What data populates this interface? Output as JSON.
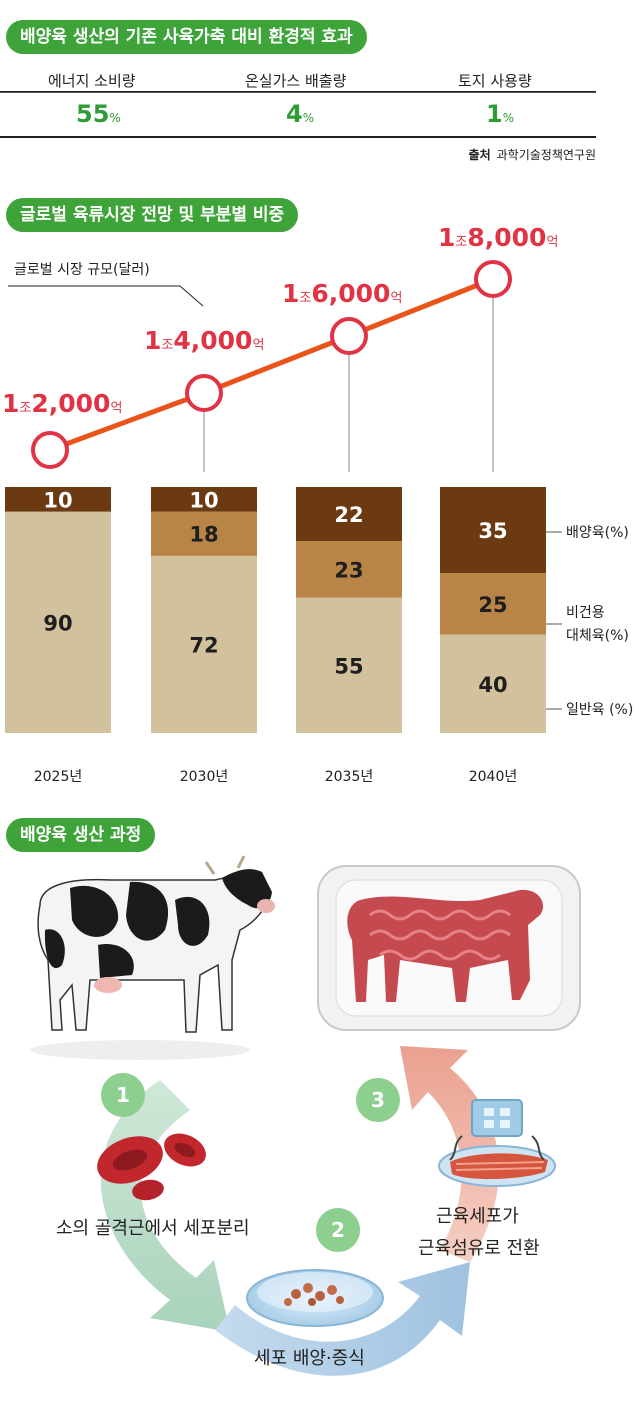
{
  "effect": {
    "title": "배양육 생산의 기존 사육가축 대비 환경적 효과",
    "items": [
      {
        "label": "에너지 소비량",
        "value": "55",
        "unit": "%"
      },
      {
        "label": "온실가스 배출량",
        "value": "4",
        "unit": "%"
      },
      {
        "label": "토지 사용량",
        "value": "1",
        "unit": "%"
      }
    ],
    "source_label": "출처",
    "source_name": "과학기술정책연구원"
  },
  "market": {
    "title": "글로벌 육류시장 전망 및 부분별 비중",
    "line_label": "글로벌 시장 규모(달러)"
  },
  "chart_data": {
    "type": "bar",
    "stacked": true,
    "categories": [
      "2025년",
      "2030년",
      "2035년",
      "2040년"
    ],
    "series": [
      {
        "name": "일반육 (%)",
        "values": [
          90,
          72,
          55,
          40
        ],
        "color": "#d2c19d"
      },
      {
        "name": "비건용 대체육(%)",
        "values": [
          0,
          18,
          23,
          25
        ],
        "color": "#b88547"
      },
      {
        "name": "배양육(%)",
        "values": [
          10,
          10,
          22,
          35
        ],
        "color": "#6b3a10"
      }
    ],
    "segment_labels": [
      [
        "90",
        "",
        "10"
      ],
      [
        "72",
        "18",
        "10"
      ],
      [
        "55",
        "23",
        "22"
      ],
      [
        "40",
        "25",
        "35"
      ]
    ],
    "ylim": [
      0,
      100
    ],
    "market_size": {
      "series_name": "글로벌 시장 규모(달러)",
      "values_won": [
        1200000000000,
        1400000000000,
        1600000000000,
        1800000000000
      ],
      "labels": [
        {
          "jo": "1",
          "jo_unit": "조",
          "eok": "2,000",
          "eok_unit": "억"
        },
        {
          "jo": "1",
          "jo_unit": "조",
          "eok": "4,000",
          "eok_unit": "억"
        },
        {
          "jo": "1",
          "jo_unit": "조",
          "eok": "6,000",
          "eok_unit": "억"
        },
        {
          "jo": "1",
          "jo_unit": "조",
          "eok": "8,000",
          "eok_unit": "억"
        }
      ],
      "line_color": "#e8541a",
      "marker_color": "#e03344"
    },
    "side_labels": [
      "배양육(%)",
      "비건용",
      "대체육(%)",
      "일반육 (%)"
    ]
  },
  "process": {
    "title": "배양육 생산 과정",
    "steps": [
      {
        "num": "1",
        "text": "소의 골격근에서 세포분리"
      },
      {
        "num": "2",
        "text": "세포 배양·증식"
      },
      {
        "num": "3",
        "text_line1": "근육세포가",
        "text_line2": "근육섬유로  전환"
      }
    ]
  }
}
